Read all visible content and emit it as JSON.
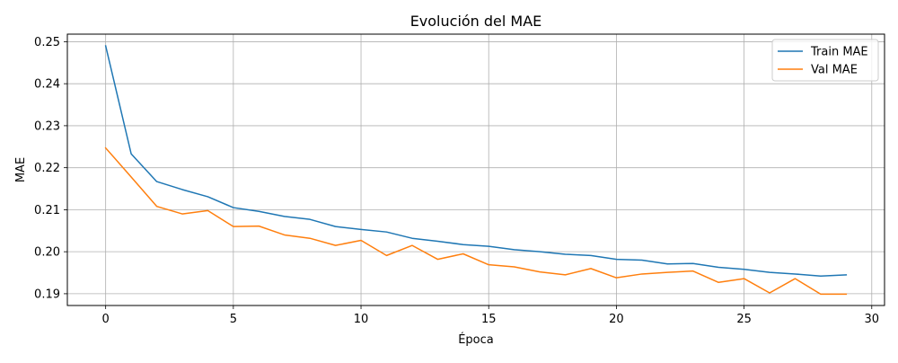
{
  "chart_data": {
    "type": "line",
    "title": "Evolución del MAE",
    "xlabel": "Época",
    "ylabel": "MAE",
    "xlim": [
      -1.5,
      30.5
    ],
    "ylim": [
      0.1872,
      0.2518
    ],
    "xticks": [
      0,
      5,
      10,
      15,
      20,
      25,
      30
    ],
    "xtick_labels": [
      "0",
      "5",
      "10",
      "15",
      "20",
      "25",
      "30"
    ],
    "yticks": [
      0.19,
      0.2,
      0.21,
      0.22,
      0.23,
      0.24,
      0.25
    ],
    "ytick_labels": [
      "0.19",
      "0.20",
      "0.21",
      "0.22",
      "0.23",
      "0.24",
      "0.25"
    ],
    "grid": true,
    "legend_position": "top-right",
    "x": [
      0,
      1,
      2,
      3,
      4,
      5,
      6,
      7,
      8,
      9,
      10,
      11,
      12,
      13,
      14,
      15,
      16,
      17,
      18,
      19,
      20,
      21,
      22,
      23,
      24,
      25,
      26,
      27,
      28,
      29
    ],
    "series": [
      {
        "name": "Train MAE",
        "color": "#1f77b4",
        "values": [
          0.249,
          0.2233,
          0.2167,
          0.2148,
          0.2131,
          0.2105,
          0.2096,
          0.2084,
          0.2077,
          0.206,
          0.2053,
          0.2047,
          0.2032,
          0.2025,
          0.2017,
          0.2013,
          0.2005,
          0.2,
          0.1994,
          0.1991,
          0.1982,
          0.198,
          0.1971,
          0.1972,
          0.1963,
          0.1958,
          0.1951,
          0.1947,
          0.1942,
          0.1945
        ]
      },
      {
        "name": "Val MAE",
        "color": "#ff7f0e",
        "values": [
          0.2247,
          0.2178,
          0.2108,
          0.209,
          0.2098,
          0.206,
          0.2061,
          0.204,
          0.2032,
          0.2015,
          0.2027,
          0.1991,
          0.2015,
          0.1982,
          0.1995,
          0.1969,
          0.1964,
          0.1952,
          0.1945,
          0.196,
          0.1938,
          0.1947,
          0.1951,
          0.1954,
          0.1927,
          0.1936,
          0.1902,
          0.1936,
          0.1899,
          0.1899
        ]
      }
    ]
  }
}
